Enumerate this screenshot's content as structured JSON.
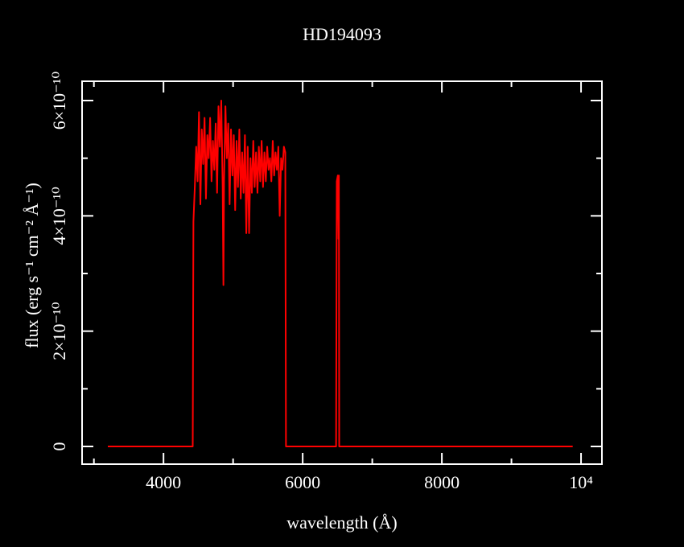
{
  "chart_data": {
    "type": "line",
    "title": "HD194093",
    "xlabel": "wavelength (Å)",
    "ylabel": "flux (erg s⁻¹ cm⁻² Å⁻¹)",
    "color": "#ff0000",
    "xlim": [
      2830,
      10300
    ],
    "ylim": [
      -3.07e-11,
      6.335e-10
    ],
    "xticks": [
      4000,
      6000,
      8000,
      {
        "value": 10000,
        "label": "10⁴"
      }
    ],
    "xminorticks": [
      3000,
      5000,
      7000,
      9000
    ],
    "yticks": [
      0,
      {
        "value": 2e-10,
        "label": "2×10⁻¹⁰"
      },
      {
        "value": 4e-10,
        "label": "4×10⁻¹⁰"
      },
      {
        "value": 6e-10,
        "label": "6×10⁻¹⁰"
      }
    ],
    "yminorticks": [
      1e-10,
      3e-10,
      5e-10
    ],
    "x": [
      3200,
      4420,
      4430,
      4450,
      4470,
      4490,
      4510,
      4530,
      4550,
      4570,
      4590,
      4610,
      4630,
      4650,
      4670,
      4690,
      4710,
      4730,
      4750,
      4770,
      4790,
      4810,
      4830,
      4850,
      4861,
      4870,
      4890,
      4910,
      4930,
      4950,
      4970,
      4990,
      5010,
      5030,
      5050,
      5070,
      5090,
      5110,
      5130,
      5150,
      5170,
      5190,
      5210,
      5230,
      5250,
      5270,
      5290,
      5310,
      5330,
      5350,
      5370,
      5390,
      5410,
      5430,
      5450,
      5470,
      5490,
      5510,
      5530,
      5550,
      5570,
      5590,
      5610,
      5630,
      5650,
      5670,
      5690,
      5710,
      5730,
      5750,
      5760,
      6480,
      6490,
      6505,
      6515,
      6520,
      6525,
      9880
    ],
    "values": [
      0,
      0,
      3.9e-10,
      4.5e-10,
      5.2e-10,
      4.6e-10,
      5.8e-10,
      4.2e-10,
      5.5e-10,
      4.9e-10,
      5.7e-10,
      4.3e-10,
      5.4e-10,
      5e-10,
      5.7e-10,
      4.6e-10,
      5.3e-10,
      4.8e-10,
      5.6e-10,
      4.4e-10,
      5.9e-10,
      5.2e-10,
      6e-10,
      4.5e-10,
      2.8e-10,
      4.6e-10,
      5.9e-10,
      5e-10,
      5.6e-10,
      4.2e-10,
      5.5e-10,
      4.7e-10,
      5.4e-10,
      4.1e-10,
      5.3e-10,
      4.5e-10,
      5.5e-10,
      4.3e-10,
      5.1e-10,
      4.4e-10,
      5.4e-10,
      3.7e-10,
      5.2e-10,
      3.7e-10,
      5e-10,
      4.4e-10,
      5.3e-10,
      4.5e-10,
      5.1e-10,
      4.4e-10,
      5.2e-10,
      4.6e-10,
      5.3e-10,
      4.5e-10,
      5.1e-10,
      4.6e-10,
      5.2e-10,
      4.8e-10,
      5e-10,
      4.6e-10,
      5.3e-10,
      4.7e-10,
      5.1e-10,
      4.8e-10,
      5.2e-10,
      4e-10,
      5e-10,
      4.8e-10,
      5.2e-10,
      5.1e-10,
      0,
      0,
      4.6e-10,
      4.7e-10,
      3.6e-10,
      4.7e-10,
      0,
      0
    ]
  }
}
